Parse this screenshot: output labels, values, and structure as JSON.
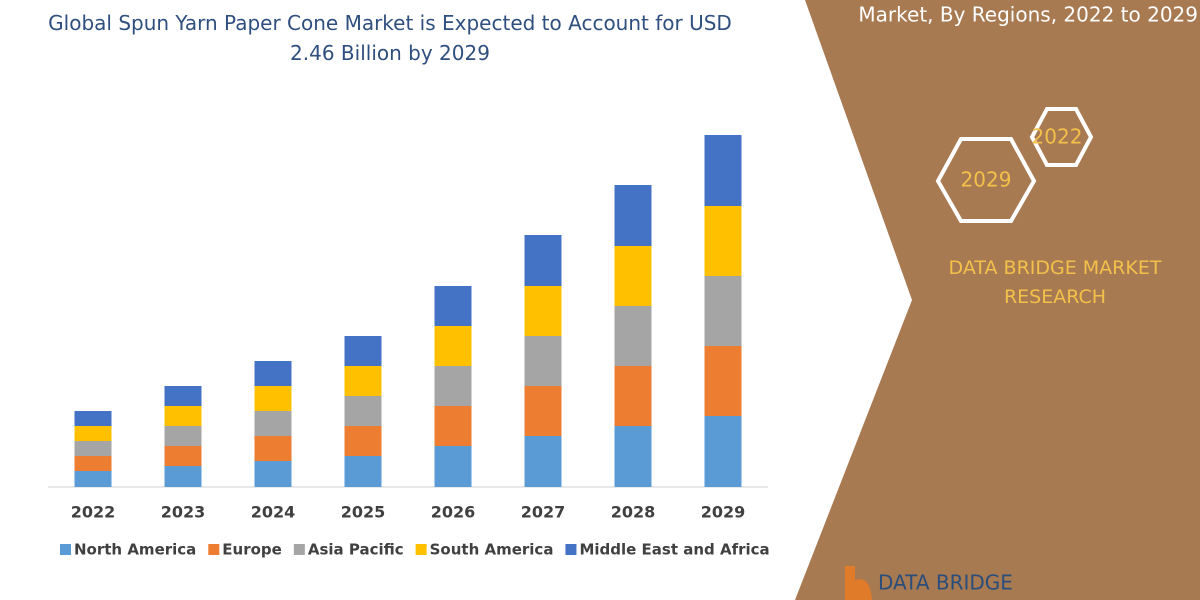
{
  "chart_data": {
    "type": "stacked-bar",
    "title": "Global Spun Yarn Paper Cone Market is Expected to Account for USD 2.46 Billion by 2029",
    "categories": [
      "2022",
      "2023",
      "2024",
      "2025",
      "2026",
      "2027",
      "2028",
      "2029"
    ],
    "series": [
      {
        "name": "North America",
        "color": "#5b9bd5",
        "values": [
          16,
          21,
          26,
          31,
          41,
          51,
          61,
          71
        ]
      },
      {
        "name": "Europe",
        "color": "#ed7d31",
        "values": [
          15,
          20,
          25,
          30,
          40,
          50,
          60,
          70
        ]
      },
      {
        "name": "Asia Pacific",
        "color": "#a5a5a5",
        "values": [
          15,
          20,
          25,
          30,
          40,
          50,
          60,
          70
        ]
      },
      {
        "name": "South America",
        "color": "#ffc000",
        "values": [
          15,
          20,
          25,
          30,
          40,
          50,
          60,
          70
        ]
      },
      {
        "name": "Middle East and Africa",
        "color": "#4472c4",
        "values": [
          15,
          20,
          25,
          30,
          40,
          51,
          61,
          71
        ]
      }
    ],
    "legend": "bottom"
  },
  "banner": {
    "title": "Market, By Regions, 2022 to 2029",
    "hex_labels": [
      "2022",
      "2029"
    ],
    "brand": "DATA BRIDGE MARKET RESEARCH",
    "logo": "DATA BRIDGE"
  }
}
